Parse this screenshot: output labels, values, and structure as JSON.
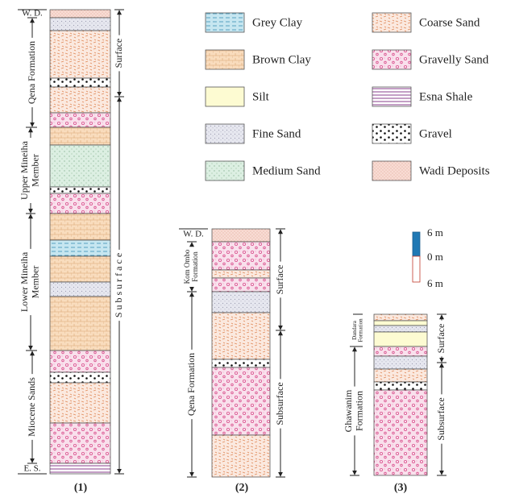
{
  "legend": [
    {
      "label": "Grey Clay"
    },
    {
      "label": "Brown Clay"
    },
    {
      "label": "Silt"
    },
    {
      "label": "Fine Sand"
    },
    {
      "label": "Medium Sand"
    },
    {
      "label": "Coarse Sand"
    },
    {
      "label": "Gravelly Sand"
    },
    {
      "label": "Esna Shale"
    },
    {
      "label": "Gravel"
    },
    {
      "label": "Wadi Deposits"
    }
  ],
  "scale": {
    "labels": [
      "6 m",
      "0 m",
      "6 m"
    ]
  },
  "columns": [
    {
      "caption": "(1)",
      "top_label": "W. D.",
      "bottom_label": "E. S.",
      "left_labels": [
        {
          "lines": [
            "Qena Formation"
          ]
        },
        {
          "lines": [
            "Upper Mineiha",
            "Member"
          ]
        },
        {
          "lines": [
            "Lower Mineiha",
            "Member"
          ]
        },
        {
          "lines": [
            "Miocene Sands"
          ]
        }
      ],
      "right_labels": [
        "Surface",
        "S u b s u r f a c e"
      ]
    },
    {
      "caption": "(2)",
      "top_label": "W. D.",
      "left_labels": [
        {
          "lines": [
            "Kom Ombo",
            "Formation"
          ]
        },
        {
          "lines": [
            "Qena Formation"
          ]
        }
      ],
      "right_labels": [
        "Surface",
        "Subsurface"
      ]
    },
    {
      "caption": "(3)",
      "left_labels": [
        {
          "lines": [
            "Dandara",
            "Formation"
          ]
        },
        {
          "lines": [
            "Ghawanim",
            "Formation"
          ]
        }
      ],
      "right_labels": [
        "Surface",
        "Subsurface"
      ]
    }
  ]
}
